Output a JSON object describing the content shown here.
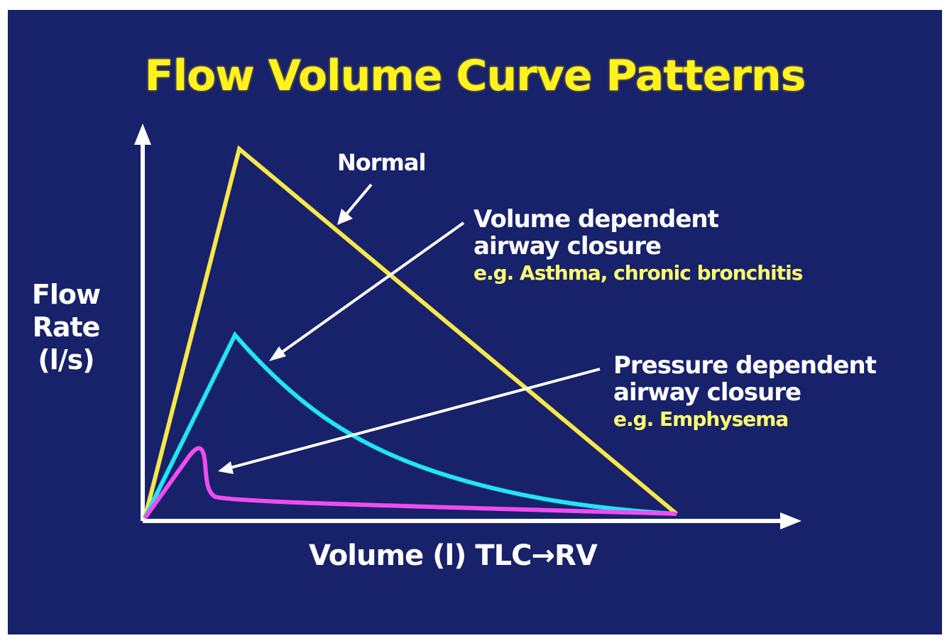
{
  "title": "Flow Volume Curve Patterns",
  "axes": {
    "y_label_lines": [
      "Flow",
      "Rate",
      "(l/s)"
    ],
    "x_label": "Volume (l) TLC→RV"
  },
  "annotations": {
    "normal": "Normal",
    "volume_dependent": {
      "line1": "Volume dependent",
      "line2": "airway closure",
      "example": "e.g. Asthma, chronic bronchitis"
    },
    "pressure_dependent": {
      "line1": "Pressure dependent",
      "line2": "airway closure",
      "example": "e.g. Emphysema"
    }
  },
  "colors": {
    "background": "#17226a",
    "title": "#fff21e",
    "normal_curve": "#f6e84a",
    "volume_dependent_curve": "#22e4f4",
    "pressure_dependent_curve": "#f04cf0",
    "axes": "#ffffff",
    "example_text": "#ffff6e"
  }
}
